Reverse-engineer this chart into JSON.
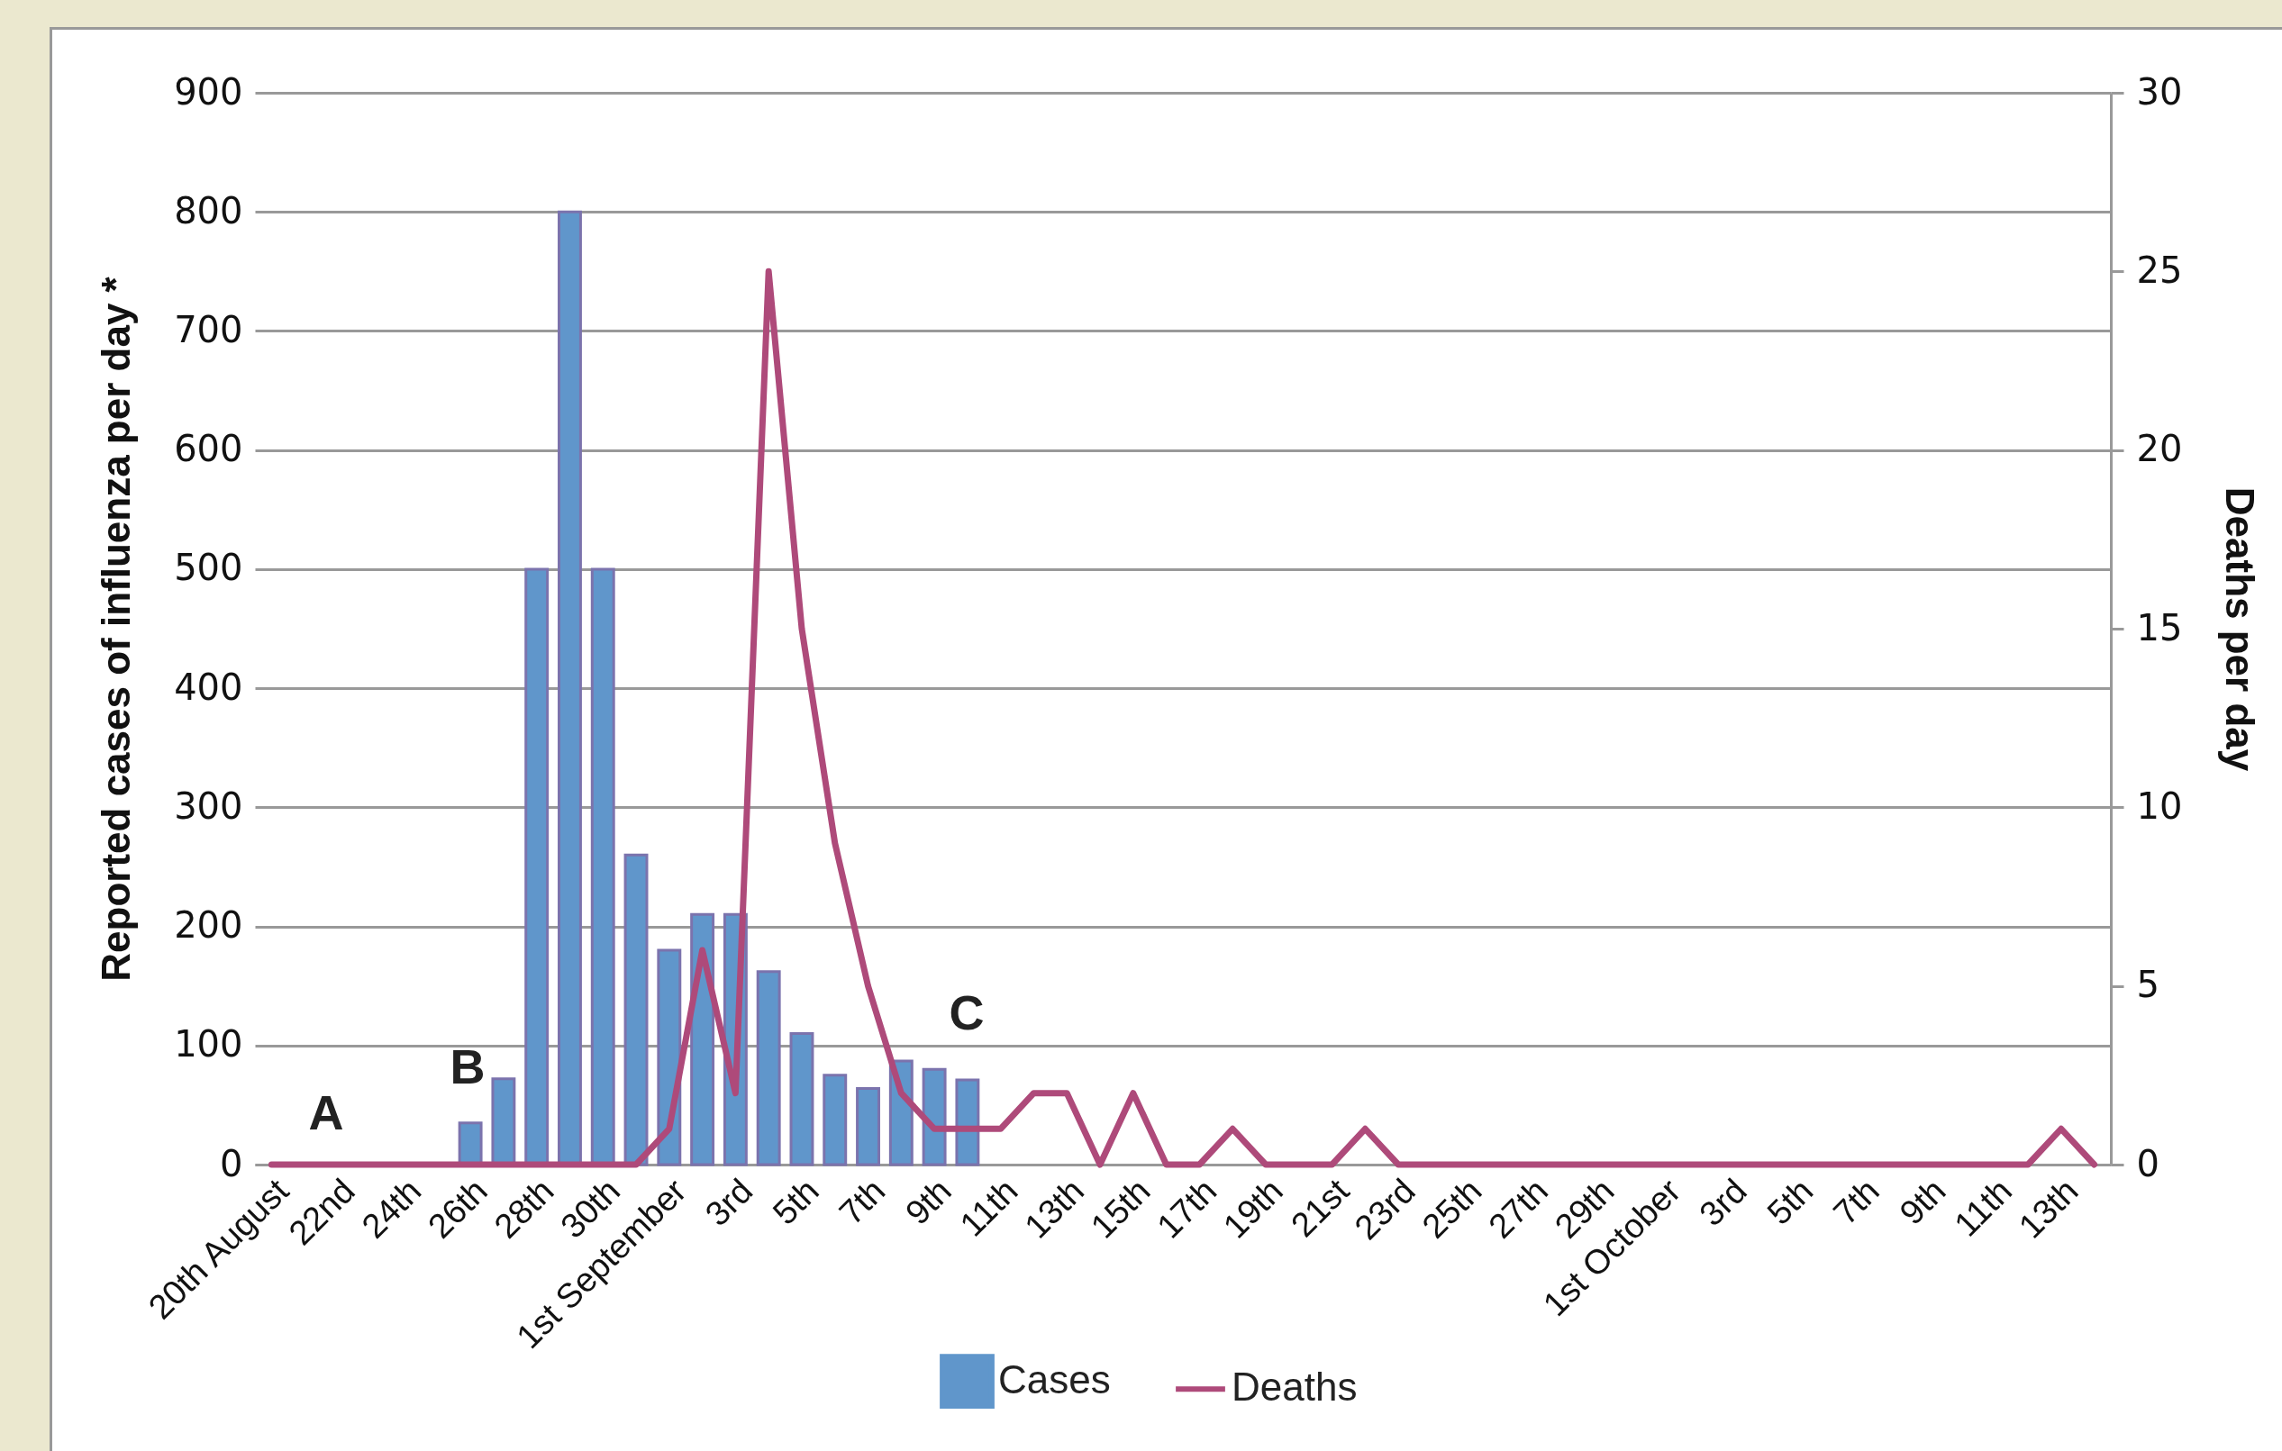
{
  "chart_data": {
    "type": "bar",
    "categories": [
      "20th August",
      null,
      "22nd",
      null,
      "24th",
      null,
      "26th",
      null,
      "28th",
      null,
      "30th",
      null,
      "1st September",
      null,
      "3rd",
      null,
      "5th",
      null,
      "7th",
      null,
      "9th",
      null,
      "11th",
      null,
      "13th",
      null,
      "15th",
      null,
      "17th",
      null,
      "19th",
      null,
      "21st",
      null,
      "23rd",
      null,
      "25th",
      null,
      "27th",
      null,
      "29th",
      null,
      "1st October",
      null,
      "3rd",
      null,
      "5th",
      null,
      "7th",
      null,
      "9th",
      null,
      "11th",
      null,
      "13th",
      null
    ],
    "series": [
      {
        "name": "Cases",
        "color": "#6096cb",
        "values": [
          null,
          null,
          null,
          null,
          null,
          null,
          35,
          72,
          500,
          800,
          500,
          260,
          180,
          210,
          210,
          162,
          110,
          75,
          64,
          87,
          80,
          71,
          null,
          null,
          null,
          null,
          null,
          null,
          null,
          null,
          null,
          null,
          null,
          null,
          null,
          null,
          null,
          null,
          null,
          null,
          null,
          null,
          null,
          null,
          null,
          null,
          null,
          null,
          null,
          null,
          null,
          null,
          null,
          null,
          null,
          null
        ]
      },
      {
        "name": "Deaths",
        "type": "line",
        "axis": "y2",
        "color": "#ae4a7a",
        "values": [
          0,
          0,
          0,
          0,
          0,
          0,
          0,
          0,
          0,
          0,
          0,
          0,
          1,
          6,
          2,
          25,
          15,
          9,
          5,
          2,
          1,
          1,
          1,
          2,
          2,
          0,
          2,
          0,
          0,
          1,
          0,
          0,
          0,
          1,
          0,
          0,
          0,
          0,
          0,
          0,
          0,
          0,
          0,
          0,
          0,
          0,
          0,
          0,
          0,
          0,
          0,
          0,
          0,
          0,
          1,
          0
        ]
      }
    ],
    "ylabel": "Reported cases of influenza per day *",
    "y2label": "Deaths per day",
    "ylim": [
      0,
      900
    ],
    "yticks": [
      0,
      100,
      200,
      300,
      400,
      500,
      600,
      700,
      800,
      900
    ],
    "y2lim": [
      0,
      30
    ],
    "y2ticks": [
      0,
      5,
      10,
      15,
      20,
      25,
      30
    ],
    "grid": "y",
    "legend": "bottom",
    "annotations": [
      "A",
      "B",
      "C"
    ]
  }
}
